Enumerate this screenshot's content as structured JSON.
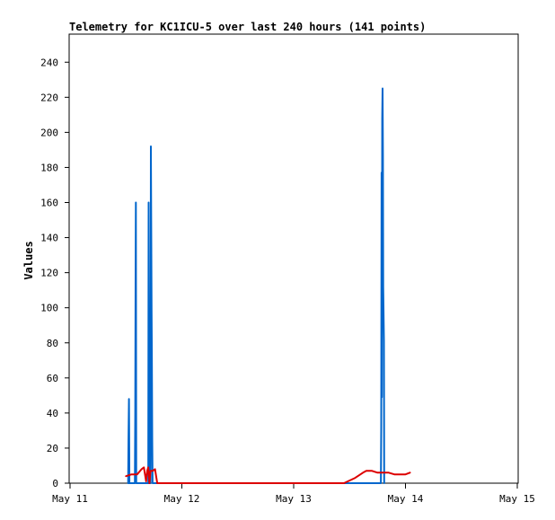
{
  "chart_data": {
    "type": "line",
    "title": "Telemetry for KC1ICU-5 over last 240 hours (141 points)",
    "xlabel": "",
    "ylabel": "Values",
    "x_tick_labels": [
      "May 11",
      "May 12",
      "May 13",
      "May 14",
      "May 15"
    ],
    "x_range_days": [
      0,
      4
    ],
    "y_ticks": [
      0,
      20,
      40,
      60,
      80,
      100,
      120,
      140,
      160,
      180,
      200,
      220,
      240
    ],
    "ylim": [
      0,
      256
    ],
    "grid": false,
    "legend": "none",
    "series": [
      {
        "color": "#0066cc",
        "points": [
          [
            0.52,
            0
          ],
          [
            0.523,
            25
          ],
          [
            0.527,
            48
          ],
          [
            0.531,
            0
          ],
          [
            0.58,
            0
          ],
          [
            0.583,
            40
          ],
          [
            0.586,
            120
          ],
          [
            0.589,
            160
          ],
          [
            0.592,
            0
          ],
          [
            0.7,
            0
          ],
          [
            0.703,
            160
          ],
          [
            0.706,
            80
          ],
          [
            0.709,
            0
          ],
          [
            0.72,
            0
          ],
          [
            0.723,
            192
          ],
          [
            0.726,
            145
          ],
          [
            0.729,
            97
          ],
          [
            0.732,
            72
          ],
          [
            0.735,
            25
          ],
          [
            0.738,
            0
          ],
          [
            1.0,
            0
          ],
          [
            2.5,
            0
          ],
          [
            2.78,
            0
          ],
          [
            2.783,
            32
          ],
          [
            2.786,
            177
          ],
          [
            2.789,
            49
          ],
          [
            2.792,
            208
          ],
          [
            2.795,
            225
          ],
          [
            2.798,
            187
          ],
          [
            2.801,
            112
          ],
          [
            2.804,
            97
          ],
          [
            2.807,
            81
          ],
          [
            2.81,
            0
          ]
        ]
      },
      {
        "color": "#dd0000",
        "points": [
          [
            0.5,
            4
          ],
          [
            0.55,
            5
          ],
          [
            0.6,
            5
          ],
          [
            0.64,
            8
          ],
          [
            0.66,
            9
          ],
          [
            0.68,
            1
          ],
          [
            0.69,
            7
          ],
          [
            0.7,
            9
          ],
          [
            0.71,
            0
          ],
          [
            0.72,
            7
          ],
          [
            0.74,
            7
          ],
          [
            0.76,
            8
          ],
          [
            0.78,
            0
          ],
          [
            1.0,
            0
          ],
          [
            2.45,
            0
          ],
          [
            2.55,
            3
          ],
          [
            2.62,
            6
          ],
          [
            2.65,
            7
          ],
          [
            2.7,
            7
          ],
          [
            2.75,
            6
          ],
          [
            2.8,
            6
          ],
          [
            2.85,
            6
          ],
          [
            2.9,
            5
          ],
          [
            2.95,
            5
          ],
          [
            3.0,
            5
          ],
          [
            3.04,
            6
          ]
        ]
      }
    ]
  }
}
